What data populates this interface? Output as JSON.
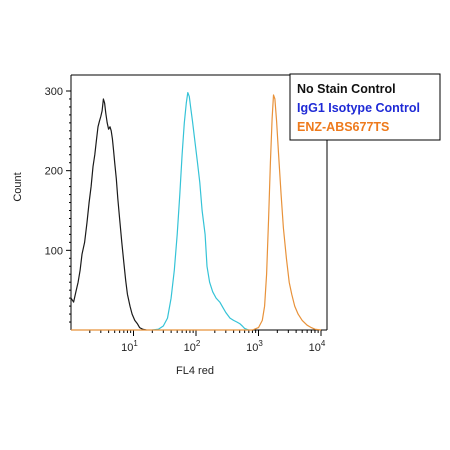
{
  "chart_data": {
    "type": "line",
    "title": "",
    "xlabel": "FL4 red",
    "ylabel": "Count",
    "x_scale": "log",
    "xlim": [
      1,
      10000
    ],
    "ylim": [
      0,
      300
    ],
    "x_ticks": [
      {
        "value": 10,
        "base": "10",
        "exp": "1"
      },
      {
        "value": 100,
        "base": "10",
        "exp": "2"
      },
      {
        "value": 1000,
        "base": "10",
        "exp": "3"
      },
      {
        "value": 10000,
        "base": "10",
        "exp": "4"
      }
    ],
    "y_ticks": [
      {
        "value": 100,
        "label": "100"
      },
      {
        "value": 200,
        "label": "200"
      },
      {
        "value": 300,
        "label": "300"
      }
    ],
    "grid": false,
    "legend_position": "top-right",
    "series": [
      {
        "name": "No Stain Control",
        "color": "#1a1a1a",
        "points": [
          [
            1,
            40
          ],
          [
            1.1,
            35
          ],
          [
            1.2,
            48
          ],
          [
            1.3,
            60
          ],
          [
            1.4,
            75
          ],
          [
            1.5,
            95
          ],
          [
            1.65,
            110
          ],
          [
            1.8,
            135
          ],
          [
            1.95,
            160
          ],
          [
            2.1,
            180
          ],
          [
            2.25,
            205
          ],
          [
            2.4,
            220
          ],
          [
            2.55,
            238
          ],
          [
            2.7,
            255
          ],
          [
            2.85,
            262
          ],
          [
            3.0,
            268
          ],
          [
            3.15,
            275
          ],
          [
            3.3,
            290
          ],
          [
            3.45,
            285
          ],
          [
            3.6,
            272
          ],
          [
            3.8,
            260
          ],
          [
            4.0,
            252
          ],
          [
            4.2,
            255
          ],
          [
            4.4,
            250
          ],
          [
            4.6,
            240
          ],
          [
            4.8,
            225
          ],
          [
            5.0,
            210
          ],
          [
            5.3,
            190
          ],
          [
            5.6,
            165
          ],
          [
            6.0,
            140
          ],
          [
            6.5,
            110
          ],
          [
            7.0,
            85
          ],
          [
            7.5,
            62
          ],
          [
            8.0,
            45
          ],
          [
            8.8,
            30
          ],
          [
            9.5,
            20
          ],
          [
            10.5,
            12
          ],
          [
            11.5,
            8
          ],
          [
            12.5,
            3
          ],
          [
            14,
            1
          ],
          [
            16,
            0
          ]
        ]
      },
      {
        "name": "IgG1 Isotype Control",
        "color": "#35c3d7",
        "points": [
          [
            20,
            0
          ],
          [
            25,
            1
          ],
          [
            30,
            5
          ],
          [
            35,
            15
          ],
          [
            40,
            40
          ],
          [
            45,
            75
          ],
          [
            50,
            120
          ],
          [
            55,
            170
          ],
          [
            60,
            220
          ],
          [
            65,
            260
          ],
          [
            70,
            285
          ],
          [
            74,
            298
          ],
          [
            78,
            293
          ],
          [
            82,
            280
          ],
          [
            88,
            262
          ],
          [
            95,
            240
          ],
          [
            105,
            212
          ],
          [
            115,
            185
          ],
          [
            125,
            150
          ],
          [
            140,
            120
          ],
          [
            150,
            80
          ],
          [
            165,
            60
          ],
          [
            185,
            48
          ],
          [
            210,
            40
          ],
          [
            240,
            35
          ],
          [
            270,
            28
          ],
          [
            300,
            22
          ],
          [
            350,
            15
          ],
          [
            400,
            12
          ],
          [
            450,
            10
          ],
          [
            500,
            8
          ],
          [
            550,
            5
          ],
          [
            600,
            2
          ],
          [
            700,
            0
          ]
        ]
      },
      {
        "name": "ENZ-ABS677TS",
        "color": "#e8923a",
        "points": [
          [
            1,
            0
          ],
          [
            500,
            0
          ],
          [
            800,
            0
          ],
          [
            1000,
            3
          ],
          [
            1150,
            12
          ],
          [
            1250,
            30
          ],
          [
            1350,
            70
          ],
          [
            1450,
            140
          ],
          [
            1550,
            210
          ],
          [
            1650,
            265
          ],
          [
            1740,
            295
          ],
          [
            1830,
            290
          ],
          [
            1950,
            262
          ],
          [
            2100,
            220
          ],
          [
            2300,
            170
          ],
          [
            2500,
            128
          ],
          [
            2800,
            90
          ],
          [
            3100,
            60
          ],
          [
            3400,
            45
          ],
          [
            3800,
            30
          ],
          [
            4300,
            20
          ],
          [
            5000,
            12
          ],
          [
            6000,
            6
          ],
          [
            7000,
            3
          ],
          [
            8000,
            1
          ],
          [
            10000,
            0
          ]
        ]
      }
    ]
  }
}
